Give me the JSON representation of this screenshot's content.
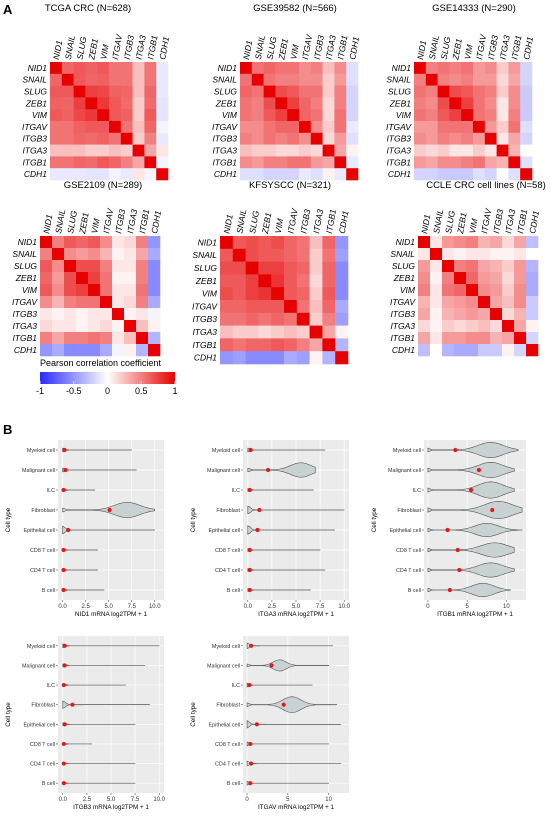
{
  "panel_labels": {
    "a": "A",
    "b": "B"
  },
  "colors": {
    "negative": "#2a2aff",
    "zero": "#ffffff",
    "positive": "#e60000",
    "violin_fill": "#c8d2d2",
    "violin_stroke": "#555555",
    "mean_point": "#e31a1c",
    "panel_bg": "#ebebeb",
    "grid": "#ffffff"
  },
  "chart_data": [
    {
      "type": "heatmap",
      "title": "TCGA CRC (N=628)",
      "genes": [
        "NID1",
        "SNAIL",
        "SLUG",
        "ZEB1",
        "VIM",
        "ITGAV",
        "ITGB3",
        "ITGA3",
        "ITGB1",
        "CDH1"
      ],
      "values": [
        [
          1.0,
          0.6,
          0.65,
          0.62,
          0.65,
          0.55,
          0.55,
          0.25,
          0.55,
          -0.1
        ],
        [
          0.6,
          1.0,
          0.65,
          0.6,
          0.62,
          0.55,
          0.55,
          0.25,
          0.55,
          -0.1
        ],
        [
          0.65,
          0.65,
          1.0,
          0.75,
          0.72,
          0.62,
          0.6,
          0.25,
          0.6,
          -0.1
        ],
        [
          0.62,
          0.6,
          0.75,
          1.0,
          0.78,
          0.65,
          0.58,
          0.2,
          0.58,
          -0.12
        ],
        [
          0.65,
          0.62,
          0.72,
          0.78,
          1.0,
          0.65,
          0.62,
          0.2,
          0.65,
          -0.12
        ],
        [
          0.55,
          0.55,
          0.62,
          0.65,
          0.65,
          1.0,
          0.55,
          0.25,
          0.6,
          -0.05
        ],
        [
          0.55,
          0.55,
          0.6,
          0.58,
          0.62,
          0.55,
          1.0,
          0.2,
          0.5,
          -0.1
        ],
        [
          0.25,
          0.25,
          0.25,
          0.2,
          0.2,
          0.25,
          0.2,
          1.0,
          0.35,
          0.1
        ],
        [
          0.55,
          0.55,
          0.6,
          0.58,
          0.65,
          0.6,
          0.5,
          0.35,
          1.0,
          -0.05
        ],
        [
          -0.1,
          -0.1,
          -0.1,
          -0.12,
          -0.12,
          -0.05,
          -0.1,
          0.1,
          -0.05,
          1.0
        ]
      ]
    },
    {
      "type": "heatmap",
      "title": "GSE39582 (N=566)",
      "genes": [
        "NID1",
        "SNAIL",
        "SLUG",
        "ZEB1",
        "VIM",
        "ITGAV",
        "ITGB3",
        "ITGA3",
        "ITGB1",
        "CDH1"
      ],
      "values": [
        [
          1.0,
          0.55,
          0.6,
          0.55,
          0.55,
          0.45,
          0.5,
          0.25,
          0.45,
          -0.15
        ],
        [
          0.55,
          1.0,
          0.55,
          0.5,
          0.5,
          0.45,
          0.45,
          0.2,
          0.4,
          -0.15
        ],
        [
          0.6,
          0.55,
          1.0,
          0.7,
          0.65,
          0.55,
          0.55,
          0.2,
          0.5,
          -0.2
        ],
        [
          0.55,
          0.5,
          0.7,
          1.0,
          0.75,
          0.6,
          0.5,
          0.15,
          0.5,
          -0.2
        ],
        [
          0.55,
          0.5,
          0.65,
          0.75,
          1.0,
          0.6,
          0.55,
          0.15,
          0.55,
          -0.2
        ],
        [
          0.45,
          0.45,
          0.55,
          0.6,
          0.6,
          1.0,
          0.45,
          0.2,
          0.55,
          -0.1
        ],
        [
          0.5,
          0.45,
          0.55,
          0.5,
          0.55,
          0.45,
          1.0,
          0.15,
          0.4,
          -0.15
        ],
        [
          0.25,
          0.2,
          0.2,
          0.15,
          0.15,
          0.2,
          0.15,
          1.0,
          0.35,
          0.05
        ],
        [
          0.45,
          0.4,
          0.5,
          0.5,
          0.55,
          0.55,
          0.4,
          0.35,
          1.0,
          -0.1
        ],
        [
          -0.15,
          -0.15,
          -0.2,
          -0.2,
          -0.2,
          -0.1,
          -0.15,
          0.05,
          -0.1,
          1.0
        ]
      ]
    },
    {
      "type": "heatmap",
      "title": "GSE14333 (N=290)",
      "genes": [
        "NID1",
        "SNAIL",
        "SLUG",
        "ZEB1",
        "VIM",
        "ITGAV",
        "ITGB3",
        "ITGA3",
        "ITGB1",
        "CDH1"
      ],
      "values": [
        [
          1.0,
          0.5,
          0.55,
          0.5,
          0.55,
          0.4,
          0.45,
          0.2,
          0.4,
          -0.2
        ],
        [
          0.5,
          1.0,
          0.5,
          0.45,
          0.5,
          0.4,
          0.4,
          0.15,
          0.35,
          -0.2
        ],
        [
          0.55,
          0.5,
          1.0,
          0.7,
          0.65,
          0.55,
          0.5,
          0.2,
          0.45,
          -0.25
        ],
        [
          0.5,
          0.45,
          0.7,
          1.0,
          0.75,
          0.55,
          0.45,
          0.1,
          0.45,
          -0.25
        ],
        [
          0.55,
          0.5,
          0.65,
          0.75,
          1.0,
          0.55,
          0.5,
          0.1,
          0.5,
          -0.25
        ],
        [
          0.4,
          0.4,
          0.55,
          0.55,
          0.55,
          1.0,
          0.4,
          0.2,
          0.55,
          -0.15
        ],
        [
          0.45,
          0.4,
          0.5,
          0.45,
          0.5,
          0.4,
          1.0,
          0.1,
          0.35,
          -0.2
        ],
        [
          0.2,
          0.15,
          0.2,
          0.1,
          0.1,
          0.2,
          0.1,
          1.0,
          0.3,
          0.0
        ],
        [
          0.4,
          0.35,
          0.45,
          0.45,
          0.5,
          0.55,
          0.35,
          0.3,
          1.0,
          -0.15
        ],
        [
          -0.2,
          -0.2,
          -0.25,
          -0.25,
          -0.25,
          -0.15,
          -0.2,
          0.0,
          -0.15,
          1.0
        ]
      ]
    },
    {
      "type": "heatmap",
      "title": "GSE2109 (N=289)",
      "genes": [
        "NID1",
        "SNAIL",
        "SLUG",
        "ZEB1",
        "VIM",
        "ITGAV",
        "ITGB3",
        "ITGA3",
        "ITGB1",
        "CDH1"
      ],
      "values": [
        [
          1.0,
          0.5,
          0.65,
          0.6,
          0.65,
          0.45,
          0.1,
          0.15,
          0.5,
          -0.5
        ],
        [
          0.5,
          1.0,
          0.45,
          0.4,
          0.45,
          0.3,
          0.05,
          0.1,
          0.35,
          -0.4
        ],
        [
          0.65,
          0.45,
          1.0,
          0.7,
          0.7,
          0.5,
          0.1,
          0.1,
          0.5,
          -0.55
        ],
        [
          0.6,
          0.4,
          0.7,
          1.0,
          0.75,
          0.55,
          0.05,
          0.05,
          0.5,
          -0.55
        ],
        [
          0.65,
          0.45,
          0.7,
          0.75,
          1.0,
          0.55,
          0.1,
          0.1,
          0.55,
          -0.55
        ],
        [
          0.45,
          0.3,
          0.5,
          0.55,
          0.55,
          1.0,
          0.1,
          0.15,
          0.5,
          -0.4
        ],
        [
          0.1,
          0.05,
          0.1,
          0.05,
          0.1,
          0.1,
          1.0,
          0.05,
          0.1,
          -0.05
        ],
        [
          0.15,
          0.1,
          0.1,
          0.05,
          0.1,
          0.15,
          0.05,
          1.0,
          0.25,
          0.05
        ],
        [
          0.5,
          0.35,
          0.5,
          0.5,
          0.55,
          0.5,
          0.1,
          0.25,
          1.0,
          -0.35
        ],
        [
          -0.5,
          -0.4,
          -0.55,
          -0.55,
          -0.55,
          -0.4,
          -0.05,
          0.05,
          -0.35,
          1.0
        ]
      ]
    },
    {
      "type": "heatmap",
      "title": "KFSYSCC (N=321)",
      "genes": [
        "NID1",
        "SNAIL",
        "SLUG",
        "ZEB1",
        "VIM",
        "ITGAV",
        "ITGB3",
        "ITGA3",
        "ITGB1",
        "CDH1"
      ],
      "values": [
        [
          1.0,
          0.65,
          0.7,
          0.65,
          0.7,
          0.6,
          0.55,
          0.25,
          0.6,
          -0.5
        ],
        [
          0.65,
          1.0,
          0.7,
          0.65,
          0.65,
          0.6,
          0.55,
          0.2,
          0.55,
          -0.45
        ],
        [
          0.7,
          0.7,
          1.0,
          0.75,
          0.75,
          0.65,
          0.6,
          0.2,
          0.6,
          -0.55
        ],
        [
          0.65,
          0.65,
          0.75,
          1.0,
          0.8,
          0.65,
          0.55,
          0.15,
          0.6,
          -0.55
        ],
        [
          0.7,
          0.65,
          0.75,
          0.8,
          1.0,
          0.65,
          0.6,
          0.2,
          0.65,
          -0.55
        ],
        [
          0.6,
          0.6,
          0.65,
          0.65,
          0.65,
          1.0,
          0.55,
          0.25,
          0.6,
          -0.4
        ],
        [
          0.55,
          0.55,
          0.6,
          0.55,
          0.6,
          0.55,
          1.0,
          0.2,
          0.5,
          -0.45
        ],
        [
          0.25,
          0.2,
          0.2,
          0.15,
          0.2,
          0.25,
          0.2,
          1.0,
          0.35,
          0.05
        ],
        [
          0.6,
          0.55,
          0.6,
          0.6,
          0.65,
          0.6,
          0.5,
          0.35,
          1.0,
          -0.35
        ],
        [
          -0.5,
          -0.45,
          -0.55,
          -0.55,
          -0.55,
          -0.4,
          -0.45,
          0.05,
          -0.35,
          1.0
        ]
      ]
    },
    {
      "type": "heatmap",
      "title": "CCLE CRC cell lines (N=58)",
      "genes": [
        "NID1",
        "SNAIL",
        "SLUG",
        "ZEB1",
        "VIM",
        "ITGAV",
        "ITGB3",
        "ITGA3",
        "ITGB1",
        "CDH1"
      ],
      "values": [
        [
          1.0,
          0.1,
          0.4,
          0.45,
          0.5,
          0.3,
          0.35,
          0.15,
          0.35,
          -0.3
        ],
        [
          0.1,
          1.0,
          0.1,
          0.05,
          0.1,
          0.1,
          0.05,
          0.05,
          0.1,
          0.0
        ],
        [
          0.4,
          0.1,
          1.0,
          0.5,
          0.55,
          0.35,
          0.3,
          0.2,
          0.4,
          -0.35
        ],
        [
          0.45,
          0.05,
          0.5,
          1.0,
          0.6,
          0.4,
          0.35,
          0.15,
          0.4,
          -0.4
        ],
        [
          0.5,
          0.1,
          0.55,
          0.6,
          1.0,
          0.45,
          0.4,
          0.2,
          0.45,
          -0.4
        ],
        [
          0.3,
          0.1,
          0.35,
          0.4,
          0.45,
          1.0,
          0.35,
          0.25,
          0.45,
          -0.25
        ],
        [
          0.35,
          0.05,
          0.3,
          0.35,
          0.4,
          0.35,
          1.0,
          0.15,
          0.3,
          -0.25
        ],
        [
          0.15,
          0.05,
          0.2,
          0.15,
          0.2,
          0.25,
          0.15,
          1.0,
          0.35,
          0.05
        ],
        [
          0.35,
          0.1,
          0.4,
          0.4,
          0.45,
          0.45,
          0.3,
          0.35,
          1.0,
          -0.2
        ],
        [
          -0.3,
          0.0,
          -0.35,
          -0.4,
          -0.4,
          -0.25,
          -0.25,
          0.05,
          -0.2,
          1.0
        ]
      ]
    },
    {
      "type": "violin",
      "xlabel": "NID1 mRNA log2TPM + 1",
      "ylabel": "Cell type",
      "xlim": [
        -0.5,
        11
      ],
      "xticks": [
        "0.0",
        "2.5",
        "5.0",
        "7.5",
        "10.0"
      ],
      "xtick_values": [
        0,
        2.5,
        5,
        7.5,
        10
      ],
      "categories": [
        "Myeloid cell",
        "Malignant cell",
        "ILC",
        "Fibroblast",
        "Epithelial cell",
        "CD8 T cell",
        "CD4 T cell",
        "B cell"
      ],
      "means": [
        0.2,
        0.3,
        0.1,
        5.1,
        0.6,
        0.1,
        0.1,
        0.1
      ],
      "maxs": [
        7.5,
        8.0,
        3.5,
        10.0,
        10.0,
        3.8,
        3.8,
        4.5
      ],
      "modes": [
        0,
        0,
        0,
        7.0,
        0,
        0,
        0,
        0
      ],
      "widths": [
        0.2,
        0.2,
        0.15,
        0.8,
        0.4,
        0.15,
        0.15,
        0.15
      ]
    },
    {
      "type": "violin",
      "xlabel": "ITGA3 mRNA log2TPM + 1",
      "ylabel": "Cell type",
      "xlim": [
        -0.5,
        10.5
      ],
      "xticks": [
        "0.0",
        "2.5",
        "5.0",
        "7.5",
        "10.0"
      ],
      "xtick_values": [
        0,
        2.5,
        5,
        7.5,
        10
      ],
      "categories": [
        "Myeloid cell",
        "Malignant cell",
        "ILC",
        "Fibroblast",
        "Epithelial cell",
        "CD8 T cell",
        "CD4 T cell",
        "B cell"
      ],
      "means": [
        0.3,
        2.1,
        0.2,
        1.2,
        1.0,
        0.2,
        0.2,
        0.2
      ],
      "maxs": [
        8.0,
        7.0,
        6.8,
        10.0,
        9.0,
        7.5,
        8.0,
        6.5
      ],
      "modes": [
        0,
        5.5,
        0,
        0,
        0,
        0,
        0,
        0
      ],
      "widths": [
        0.2,
        0.75,
        0.15,
        0.4,
        0.45,
        0.15,
        0.15,
        0.15
      ]
    },
    {
      "type": "violin",
      "xlabel": "ITGB1 mRNA log2TPM + 1",
      "ylabel": "Cell type",
      "xlim": [
        -0.5,
        12.5
      ],
      "xticks": [
        "0",
        "5",
        "10"
      ],
      "xtick_values": [
        0,
        5,
        10
      ],
      "categories": [
        "Myeloid cell",
        "Malignant cell",
        "ILC",
        "Fibroblast",
        "Epithelial cell",
        "CD8 T cell",
        "CD4 T cell",
        "B cell"
      ],
      "means": [
        3.5,
        6.5,
        5.5,
        8.2,
        2.5,
        3.8,
        4.0,
        2.8
      ],
      "maxs": [
        11.5,
        11.0,
        11.0,
        12.0,
        12.0,
        11.0,
        11.0,
        10.5
      ],
      "modes": [
        8.0,
        8.0,
        8.0,
        9.0,
        7.5,
        8.5,
        8.0,
        7.0
      ],
      "widths": [
        0.8,
        0.8,
        0.85,
        0.9,
        0.7,
        0.75,
        0.75,
        0.7
      ]
    },
    {
      "type": "violin",
      "xlabel": "ITGB3 mRNA log2TPM + 1",
      "ylabel": "Cell type",
      "xlim": [
        -0.5,
        10.5
      ],
      "xticks": [
        "0.0",
        "2.5",
        "5.0",
        "7.5",
        "10.0"
      ],
      "xtick_values": [
        0,
        2.5,
        5,
        7.5,
        10
      ],
      "categories": [
        "Myeloid cell",
        "Malignant cell",
        "ILC",
        "Fibroblast",
        "Epithelial cell",
        "CD8 T cell",
        "CD4 T cell",
        "B cell"
      ],
      "means": [
        0.2,
        0.2,
        0.1,
        1.0,
        0.2,
        0.1,
        0.1,
        0.1
      ],
      "maxs": [
        10.0,
        8.5,
        6.5,
        9.0,
        7.5,
        3.0,
        7.5,
        7.5
      ],
      "modes": [
        0,
        0,
        0,
        0,
        0,
        0,
        0,
        0
      ],
      "widths": [
        0.2,
        0.15,
        0.15,
        0.4,
        0.15,
        0.1,
        0.12,
        0.12
      ]
    },
    {
      "type": "violin",
      "xlabel": "ITGAV mRNA log2TPM + 1",
      "ylabel": "Cell type",
      "xlim": [
        -0.5,
        12.5
      ],
      "xticks": [
        "0",
        "5",
        "10"
      ],
      "xtick_values": [
        0,
        5,
        10
      ],
      "categories": [
        "Myeloid cell",
        "Malignant cell",
        "ILC",
        "Fibroblast",
        "Epithelial cell",
        "CD8 T cell",
        "CD4 T cell",
        "B cell"
      ],
      "means": [
        0.5,
        3.0,
        0.3,
        4.5,
        1.2,
        0.4,
        0.5,
        0.4
      ],
      "maxs": [
        10.5,
        10.0,
        8.0,
        11.0,
        11.5,
        10.0,
        11.5,
        10.0
      ],
      "modes": [
        0,
        4.0,
        0,
        5.5,
        0,
        0,
        0,
        0
      ],
      "widths": [
        0.3,
        0.6,
        0.2,
        0.85,
        0.4,
        0.2,
        0.25,
        0.2
      ]
    }
  ],
  "legend": {
    "title": "Pearson correlation coefficient",
    "ticks": [
      "-1",
      "-0.5",
      "0",
      "0.5",
      "1"
    ],
    "tick_values": [
      -1,
      -0.5,
      0,
      0.5,
      1
    ]
  }
}
